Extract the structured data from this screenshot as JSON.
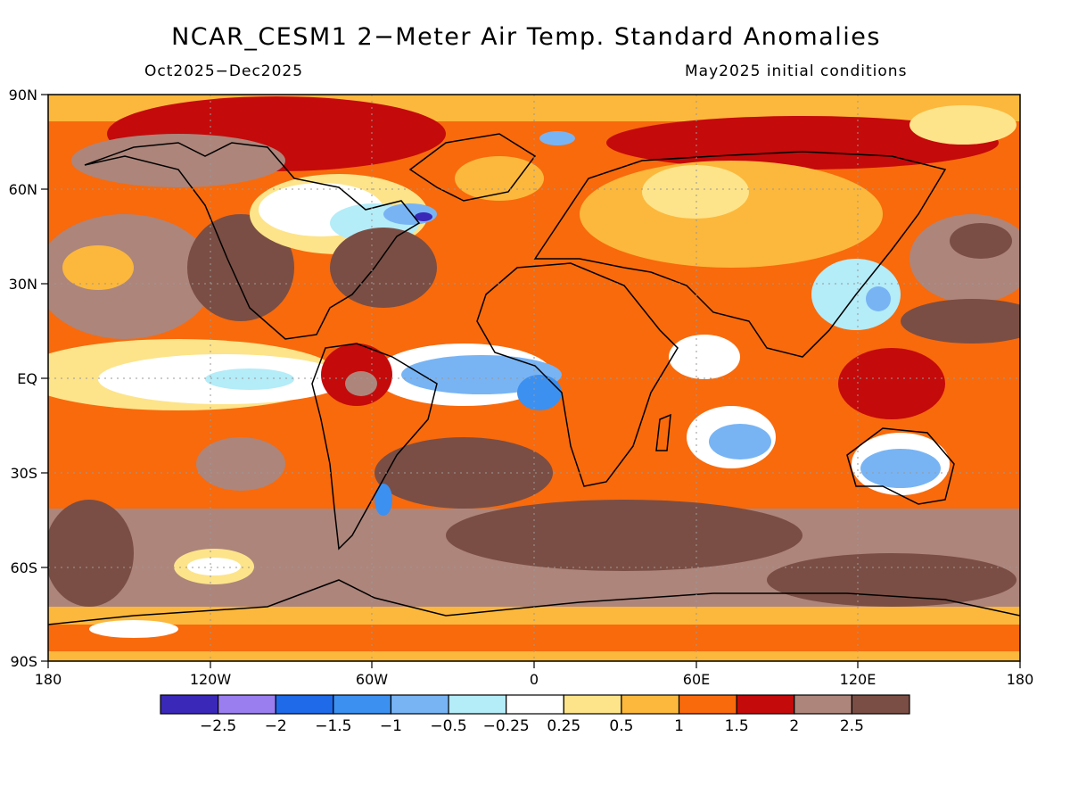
{
  "title": "NCAR_CESM1 2−Meter Air Temp. Standard Anomalies",
  "subtitle_left": "Oct2025−Dec2025",
  "subtitle_right": "May2025 initial conditions",
  "axes": {
    "lat_labels": [
      "90N",
      "60N",
      "30N",
      "EQ",
      "30S",
      "60S",
      "90S"
    ],
    "lon_labels": [
      "180",
      "120W",
      "60W",
      "0",
      "60E",
      "120E",
      "180"
    ]
  },
  "colorbar": {
    "colors": [
      "#3a28b8",
      "#9a7ef0",
      "#1e6ae8",
      "#3c90f0",
      "#78b4f4",
      "#b4ecf8",
      "#ffffff",
      "#fde48a",
      "#fcb83c",
      "#f86a0c",
      "#c40a0a",
      "#ad857b",
      "#7a4e44"
    ],
    "labels": [
      "−2.5",
      "−2",
      "−1.5",
      "−1",
      "−0.5",
      "−0.25",
      "0.25",
      "0.5",
      "1",
      "1.5",
      "2",
      "2.5"
    ]
  }
}
